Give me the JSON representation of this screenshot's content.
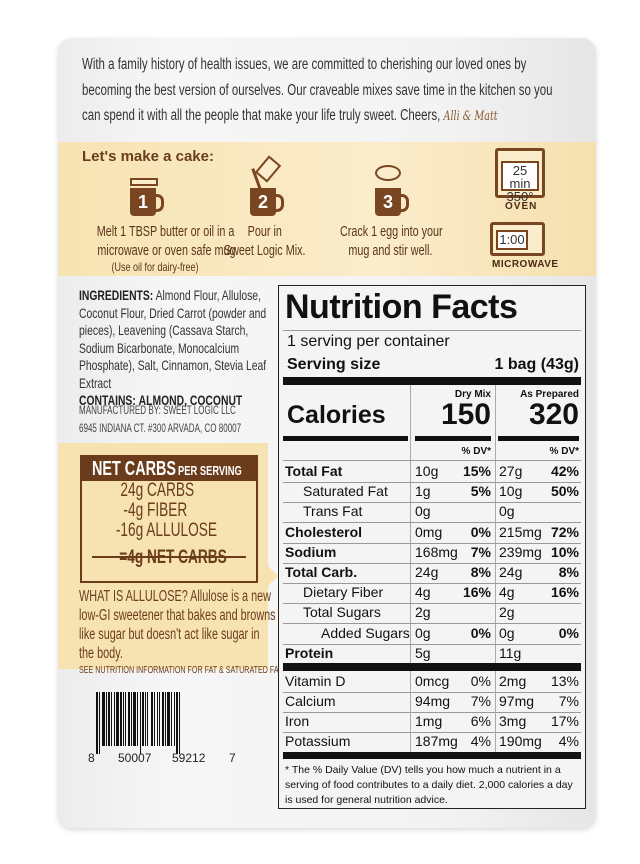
{
  "intro": {
    "lines": [
      "With a family history of health issues, we are committed to cherishing our loved ones by",
      "becoming the best version of ourselves. Our craveable mixes save time in the kitchen so you",
      "can spend it with all the people that make your life truly sweet. Cheers,"
    ],
    "signature": "Alli & Matt"
  },
  "directions": {
    "title": "Let's make a cake:",
    "steps": [
      {
        "num": "1",
        "lines": [
          "Melt 1 TBSP butter or oil in a",
          "microwave or oven safe mug."
        ],
        "note": "(Use oil for dairy-free)",
        "icon": "butter-mug-icon"
      },
      {
        "num": "2",
        "lines": [
          "Pour in",
          "Sweet Logic Mix."
        ],
        "icon": "pour-mix-mug-icon"
      },
      {
        "num": "3",
        "lines": [
          "Crack 1 egg into your",
          "mug and stir well."
        ],
        "icon": "egg-mug-icon"
      }
    ],
    "oven": {
      "time": "25 min",
      "temp": "350°",
      "label": "OVEN"
    },
    "microwave": {
      "time": "1:00",
      "label": "MICROWAVE"
    }
  },
  "ingredients": {
    "label": "INGREDIENTS:",
    "text": "Almond Flour, Allulose, Coconut Flour, Dried Carrot (powder and pieces), Leavening (Cassava Starch, Sodium Bicarbonate, Monocalcium Phosphate), Salt, Cinnamon, Stevia Leaf Extract",
    "contains_label": "CONTAINS:",
    "contains": "ALMOND, COCONUT",
    "manufacturer": "MANUFACTURED BY: SWEET LOGIC LLC",
    "address": "6945 INDIANA CT. #300 ARVADA, CO 80007"
  },
  "net_carbs": {
    "title": "NET CARBS",
    "subtitle": "PER SERVING",
    "rows": [
      {
        "amount": "24g",
        "label": "CARBS"
      },
      {
        "amount": "-4g",
        "label": "FIBER"
      },
      {
        "amount": "-16g",
        "label": "ALLULOSE"
      }
    ],
    "total": {
      "amount": "=4g",
      "label": "NET CARBS"
    },
    "allulose_note": [
      "WHAT IS ALLULOSE? Allulose is a new",
      "low-GI sweetener that bakes and browns",
      "like sugar but doesn't act like sugar in",
      "the body."
    ],
    "fine_print": "SEE NUTRITION INFORMATION FOR FAT & SATURATED FAT CONTENT."
  },
  "barcode": {
    "digits": [
      "8",
      "50007",
      "59212",
      "7"
    ]
  },
  "nutrition": {
    "title": "Nutrition Facts",
    "servings": "1 serving per container",
    "serving_size_label": "Serving size",
    "serving_size": "1 bag (43g)",
    "col1": "Dry Mix",
    "col2": "As Prepared",
    "calories_label": "Calories",
    "calories": [
      "150",
      "320"
    ],
    "dv_header": "% DV*",
    "rows": [
      {
        "name": "Total Fat",
        "bold": true,
        "indent": 0,
        "a": "10g",
        "ad": "15%",
        "b": "27g",
        "bd": "42%"
      },
      {
        "name": "Saturated Fat",
        "bold": false,
        "indent": 1,
        "a": "1g",
        "ad": "5%",
        "b": "10g",
        "bd": "50%"
      },
      {
        "name": "Trans Fat",
        "bold": false,
        "indent": 1,
        "a": "0g",
        "ad": "",
        "b": "0g",
        "bd": ""
      },
      {
        "name": "Cholesterol",
        "bold": true,
        "indent": 0,
        "a": "0mg",
        "ad": "0%",
        "b": "215mg",
        "bd": "72%"
      },
      {
        "name": "Sodium",
        "bold": true,
        "indent": 0,
        "a": "168mg",
        "ad": "7%",
        "b": "239mg",
        "bd": "10%"
      },
      {
        "name": "Total Carb.",
        "bold": true,
        "indent": 0,
        "a": "24g",
        "ad": "8%",
        "b": "24g",
        "bd": "8%"
      },
      {
        "name": "Dietary Fiber",
        "bold": false,
        "indent": 1,
        "a": "4g",
        "ad": "16%",
        "b": "4g",
        "bd": "16%"
      },
      {
        "name": "Total Sugars",
        "bold": false,
        "indent": 1,
        "a": "2g",
        "ad": "",
        "b": "2g",
        "bd": ""
      },
      {
        "name": "Added Sugars",
        "bold": false,
        "indent": 2,
        "a": "0g",
        "ad": "0%",
        "b": "0g",
        "bd": "0%"
      },
      {
        "name": "Protein",
        "bold": true,
        "indent": 0,
        "a": "5g",
        "ad": "",
        "b": "11g",
        "bd": ""
      }
    ],
    "vitamins": [
      {
        "name": "Vitamin D",
        "a": "0mcg",
        "ad": "0%",
        "b": "2mg",
        "bd": "13%"
      },
      {
        "name": "Calcium",
        "a": "94mg",
        "ad": "7%",
        "b": "97mg",
        "bd": "7%"
      },
      {
        "name": "Iron",
        "a": "1mg",
        "ad": "6%",
        "b": "3mg",
        "bd": "17%"
      },
      {
        "name": "Potassium",
        "a": "187mg",
        "ad": "4%",
        "b": "190mg",
        "bd": "4%"
      }
    ],
    "footnote": "* The % Daily Value (DV) tells you how much a nutrient in a serving of food contributes to a daily diet. 2,000 calories a day is used for general nutrition advice."
  },
  "colors": {
    "brown": "#6b3c1c",
    "cream": "#f7e3b1",
    "package": "#f3f3f3"
  }
}
